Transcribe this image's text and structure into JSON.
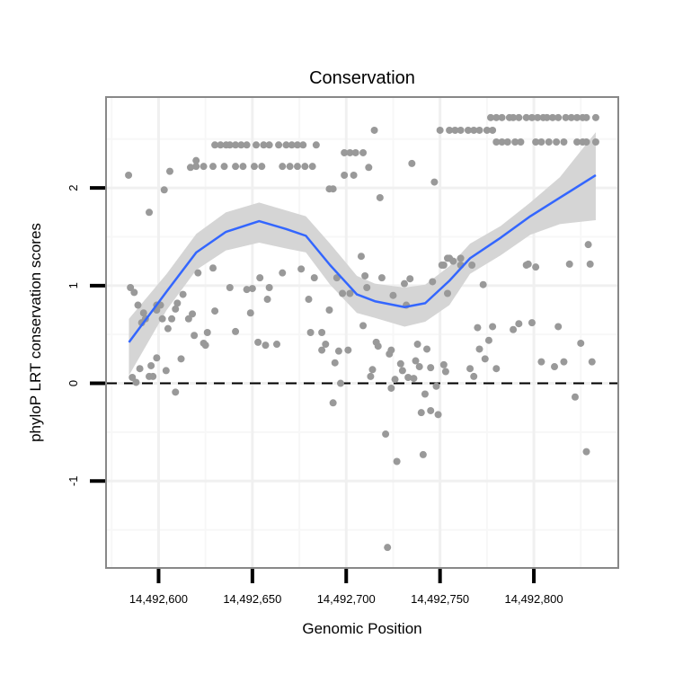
{
  "chart_data": {
    "type": "scatter",
    "title": "Conservation",
    "xlabel": "Genomic Position",
    "ylabel": "phyloP LRT conservation scores",
    "xlim": [
      14492572,
      14492845
    ],
    "ylim": [
      -1.89,
      2.93
    ],
    "x_ticks": [
      14492600,
      14492650,
      14492700,
      14492750,
      14492800
    ],
    "x_tick_labels": [
      "14,492,600",
      "14,492,650",
      "14,492,700",
      "14,492,750",
      "14,492,800"
    ],
    "y_ticks": [
      -1,
      0,
      1,
      2
    ],
    "y_tick_labels": [
      "-1",
      "0",
      "1",
      "2"
    ],
    "y_minor_grid": [
      -1.5,
      -0.5,
      0.5,
      1.5,
      2.5
    ],
    "grid": true,
    "reference_line": {
      "y": 0,
      "style": "dashed",
      "color": "#000000"
    },
    "point_color": "#999999",
    "smooth_color": "#3366FF",
    "band_color": "#D3D3D3",
    "points": [
      [
        14492630,
        2.44
      ],
      [
        14492633,
        2.44
      ],
      [
        14492636,
        2.44
      ],
      [
        14492638,
        2.44
      ],
      [
        14492641,
        2.44
      ],
      [
        14492644,
        2.44
      ],
      [
        14492647,
        2.44
      ],
      [
        14492652,
        2.44
      ],
      [
        14492656,
        2.44
      ],
      [
        14492659,
        2.44
      ],
      [
        14492664,
        2.44
      ],
      [
        14492668,
        2.44
      ],
      [
        14492671,
        2.44
      ],
      [
        14492674,
        2.44
      ],
      [
        14492677,
        2.44
      ],
      [
        14492684,
        2.44
      ],
      [
        14492620,
        2.22
      ],
      [
        14492624,
        2.22
      ],
      [
        14492629,
        2.22
      ],
      [
        14492635,
        2.22
      ],
      [
        14492641,
        2.22
      ],
      [
        14492645,
        2.22
      ],
      [
        14492651,
        2.22
      ],
      [
        14492655,
        2.22
      ],
      [
        14492666,
        2.22
      ],
      [
        14492670,
        2.22
      ],
      [
        14492674,
        2.22
      ],
      [
        14492678,
        2.22
      ],
      [
        14492682,
        2.22
      ],
      [
        14492617,
        2.21
      ],
      [
        14492620,
        2.28
      ],
      [
        14492584,
        2.13
      ],
      [
        14492595,
        1.75
      ],
      [
        14492603,
        1.98
      ],
      [
        14492606,
        2.17
      ],
      [
        14492699,
        2.36
      ],
      [
        14492702,
        2.36
      ],
      [
        14492705,
        2.36
      ],
      [
        14492709,
        2.36
      ],
      [
        14492699,
        2.13
      ],
      [
        14492704,
        2.13
      ],
      [
        14492712,
        2.21
      ],
      [
        14492715,
        2.59
      ],
      [
        14492718,
        1.9
      ],
      [
        14492735,
        2.25
      ],
      [
        14492747,
        2.06
      ],
      [
        14492750,
        2.59
      ],
      [
        14492691,
        1.99
      ],
      [
        14492693,
        1.99
      ],
      [
        14492755,
        2.59
      ],
      [
        14492758,
        2.59
      ],
      [
        14492761,
        2.59
      ],
      [
        14492765,
        2.59
      ],
      [
        14492768,
        2.59
      ],
      [
        14492771,
        2.59
      ],
      [
        14492775,
        2.59
      ],
      [
        14492778,
        2.59
      ],
      [
        14492777,
        2.72
      ],
      [
        14492780,
        2.72
      ],
      [
        14492783,
        2.72
      ],
      [
        14492787,
        2.72
      ],
      [
        14492789,
        2.72
      ],
      [
        14492792,
        2.72
      ],
      [
        14492796,
        2.72
      ],
      [
        14492799,
        2.72
      ],
      [
        14492802,
        2.72
      ],
      [
        14492805,
        2.72
      ],
      [
        14492807,
        2.72
      ],
      [
        14492810,
        2.72
      ],
      [
        14492813,
        2.72
      ],
      [
        14492817,
        2.72
      ],
      [
        14492820,
        2.72
      ],
      [
        14492823,
        2.72
      ],
      [
        14492826,
        2.72
      ],
      [
        14492828,
        2.72
      ],
      [
        14492833,
        2.72
      ],
      [
        14492780,
        2.47
      ],
      [
        14492783,
        2.47
      ],
      [
        14492786,
        2.47
      ],
      [
        14492790,
        2.47
      ],
      [
        14492793,
        2.47
      ],
      [
        14492801,
        2.47
      ],
      [
        14492804,
        2.47
      ],
      [
        14492808,
        2.47
      ],
      [
        14492812,
        2.47
      ],
      [
        14492816,
        2.47
      ],
      [
        14492823,
        2.47
      ],
      [
        14492826,
        2.47
      ],
      [
        14492828,
        2.47
      ],
      [
        14492833,
        2.47
      ],
      [
        14492585,
        0.98
      ],
      [
        14492587,
        0.93
      ],
      [
        14492589,
        0.8
      ],
      [
        14492592,
        0.72
      ],
      [
        14492593,
        0.66
      ],
      [
        14492591,
        0.62
      ],
      [
        14492599,
        0.8
      ],
      [
        14492601,
        0.8
      ],
      [
        14492599,
        0.75
      ],
      [
        14492602,
        0.66
      ],
      [
        14492605,
        0.56
      ],
      [
        14492607,
        0.66
      ],
      [
        14492609,
        0.76
      ],
      [
        14492610,
        0.82
      ],
      [
        14492613,
        0.91
      ],
      [
        14492616,
        0.66
      ],
      [
        14492618,
        0.71
      ],
      [
        14492621,
        1.13
      ],
      [
        14492629,
        1.18
      ],
      [
        14492630,
        0.74
      ],
      [
        14492619,
        0.49
      ],
      [
        14492626,
        0.52
      ],
      [
        14492624,
        0.41
      ],
      [
        14492625,
        0.39
      ],
      [
        14492612,
        0.25
      ],
      [
        14492599,
        0.26
      ],
      [
        14492596,
        0.18
      ],
      [
        14492590,
        0.15
      ],
      [
        14492604,
        0.13
      ],
      [
        14492595,
        0.07
      ],
      [
        14492597,
        0.07
      ],
      [
        14492586,
        0.06
      ],
      [
        14492588,
        0.01
      ],
      [
        14492609,
        -0.09
      ],
      [
        14492638,
        0.98
      ],
      [
        14492641,
        0.53
      ],
      [
        14492647,
        0.96
      ],
      [
        14492650,
        0.97
      ],
      [
        14492649,
        0.72
      ],
      [
        14492654,
        1.08
      ],
      [
        14492658,
        0.86
      ],
      [
        14492659,
        0.98
      ],
      [
        14492653,
        0.42
      ],
      [
        14492657,
        0.39
      ],
      [
        14492663,
        0.4
      ],
      [
        14492666,
        1.13
      ],
      [
        14492708,
        1.3
      ],
      [
        14492710,
        1.1
      ],
      [
        14492711,
        0.98
      ],
      [
        14492719,
        1.08
      ],
      [
        14492725,
        0.9
      ],
      [
        14492731,
        1.02
      ],
      [
        14492734,
        1.07
      ],
      [
        14492732,
        0.8
      ],
      [
        14492746,
        1.04
      ],
      [
        14492751,
        1.21
      ],
      [
        14492754,
        1.28
      ],
      [
        14492754,
        0.92
      ],
      [
        14492709,
        0.59
      ],
      [
        14492691,
        0.75
      ],
      [
        14492680,
        0.86
      ],
      [
        14492676,
        1.17
      ],
      [
        14492683,
        1.08
      ],
      [
        14492695,
        1.08
      ],
      [
        14492698,
        0.92
      ],
      [
        14492702,
        0.92
      ],
      [
        14492681,
        0.52
      ],
      [
        14492687,
        0.52
      ],
      [
        14492689,
        0.4
      ],
      [
        14492687,
        0.34
      ],
      [
        14492696,
        0.33
      ],
      [
        14492701,
        0.34
      ],
      [
        14492694,
        0.21
      ],
      [
        14492697,
        0.0
      ],
      [
        14492693,
        -0.2
      ],
      [
        14492714,
        0.14
      ],
      [
        14492713,
        0.07
      ],
      [
        14492716,
        0.42
      ],
      [
        14492717,
        0.38
      ],
      [
        14492724,
        0.34
      ],
      [
        14492723,
        0.3
      ],
      [
        14492729,
        0.2
      ],
      [
        14492730,
        0.13
      ],
      [
        14492726,
        0.04
      ],
      [
        14492733,
        0.06
      ],
      [
        14492736,
        0.05
      ],
      [
        14492724,
        -0.05
      ],
      [
        14492738,
        0.4
      ],
      [
        14492743,
        0.35
      ],
      [
        14492737,
        0.23
      ],
      [
        14492739,
        0.17
      ],
      [
        14492745,
        0.16
      ],
      [
        14492752,
        0.19
      ],
      [
        14492753,
        0.12
      ],
      [
        14492748,
        -0.03
      ],
      [
        14492742,
        -0.11
      ],
      [
        14492740,
        -0.3
      ],
      [
        14492745,
        -0.28
      ],
      [
        14492749,
        -0.32
      ],
      [
        14492721,
        -0.52
      ],
      [
        14492727,
        -0.8
      ],
      [
        14492741,
        -0.73
      ],
      [
        14492722,
        -1.68
      ],
      [
        14492752,
        1.21
      ],
      [
        14492755,
        1.28
      ],
      [
        14492757,
        1.25
      ],
      [
        14492761,
        1.28
      ],
      [
        14492761,
        1.21
      ],
      [
        14492767,
        1.21
      ],
      [
        14492773,
        1.01
      ],
      [
        14492796,
        1.21
      ],
      [
        14492797,
        1.22
      ],
      [
        14492801,
        1.19
      ],
      [
        14492819,
        1.22
      ],
      [
        14492830,
        1.22
      ],
      [
        14492829,
        1.42
      ],
      [
        14492770,
        0.57
      ],
      [
        14492778,
        0.58
      ],
      [
        14492789,
        0.55
      ],
      [
        14492792,
        0.61
      ],
      [
        14492799,
        0.62
      ],
      [
        14492813,
        0.58
      ],
      [
        14492776,
        0.44
      ],
      [
        14492771,
        0.35
      ],
      [
        14492774,
        0.25
      ],
      [
        14492780,
        0.15
      ],
      [
        14492766,
        0.15
      ],
      [
        14492768,
        0.07
      ],
      [
        14492804,
        0.22
      ],
      [
        14492811,
        0.17
      ],
      [
        14492816,
        0.22
      ],
      [
        14492825,
        0.41
      ],
      [
        14492831,
        0.22
      ],
      [
        14492822,
        -0.14
      ],
      [
        14492828,
        -0.7
      ]
    ],
    "smooth": {
      "x": [
        14492584.2,
        14492604.3,
        14492620.1,
        14492635.9,
        14492653.6,
        14492667.9,
        14492678.5,
        14492691.4,
        14492705.7,
        14492715.3,
        14492731.1,
        14492742.1,
        14492755.0,
        14492766.0,
        14492782.3,
        14492798.1,
        14492813.9,
        14492833.0
      ],
      "y": [
        0.42,
        0.94,
        1.34,
        1.55,
        1.66,
        1.58,
        1.51,
        1.21,
        0.91,
        0.84,
        0.78,
        0.82,
        1.05,
        1.28,
        1.49,
        1.71,
        1.9,
        2.13
      ],
      "lo": [
        0.08,
        0.75,
        1.16,
        1.36,
        1.44,
        1.38,
        1.34,
        1.01,
        0.72,
        0.67,
        0.58,
        0.63,
        0.8,
        1.12,
        1.31,
        1.52,
        1.63,
        1.67
      ],
      "hi": [
        0.66,
        1.12,
        1.53,
        1.75,
        1.85,
        1.77,
        1.71,
        1.43,
        1.1,
        1.02,
        0.98,
        1.01,
        1.2,
        1.43,
        1.61,
        1.85,
        2.11,
        2.57
      ]
    }
  }
}
